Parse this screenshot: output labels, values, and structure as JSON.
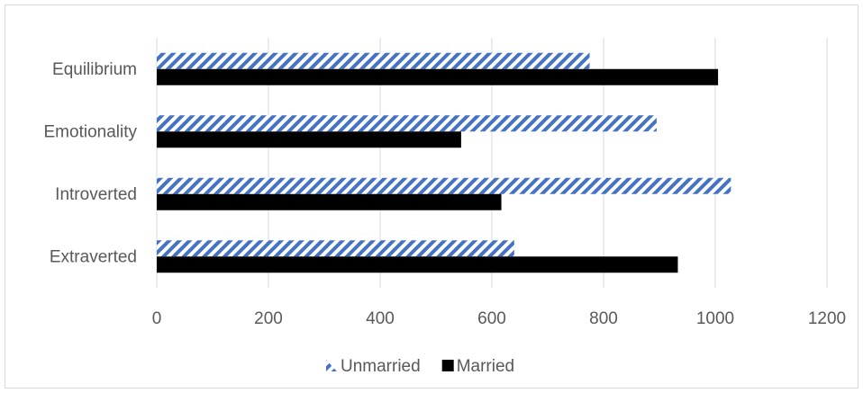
{
  "chart_data": {
    "type": "bar",
    "orientation": "horizontal",
    "categories": [
      "Equilibrium",
      "Emotionality",
      "Introverted",
      "Extraverted"
    ],
    "series": [
      {
        "name": "Unmarried",
        "values": [
          775,
          895,
          1028,
          640
        ],
        "color": "#4472c4",
        "pattern": "diagonal-stripes"
      },
      {
        "name": "Married",
        "values": [
          1005,
          545,
          617,
          933
        ],
        "color": "#000000",
        "pattern": "solid"
      }
    ],
    "xlim": [
      0,
      1200
    ],
    "xticks": [
      "0",
      "200",
      "400",
      "600",
      "800",
      "1000",
      "1200"
    ],
    "grid": true,
    "legend_position": "bottom"
  }
}
